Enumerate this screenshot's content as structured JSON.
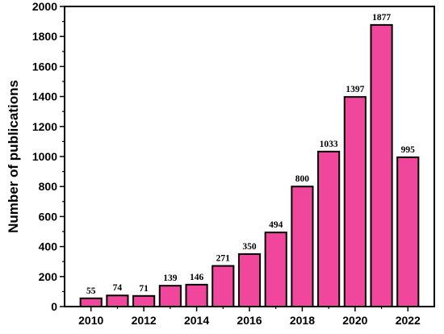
{
  "chart_data": {
    "type": "bar",
    "categories": [
      "2010",
      "2011",
      "2012",
      "2013",
      "2014",
      "2015",
      "2016",
      "2017",
      "2018",
      "2019",
      "2020",
      "2021",
      "2022"
    ],
    "values": [
      55,
      74,
      71,
      139,
      146,
      271,
      350,
      494,
      800,
      1033,
      1397,
      1877,
      995
    ],
    "data_labels": [
      "55",
      "74",
      "71",
      "139",
      "146",
      "271",
      "350",
      "494",
      "800",
      "1033",
      "1397",
      "1877",
      "995"
    ],
    "xticks": [
      "2010",
      "2012",
      "2014",
      "2016",
      "2018",
      "2020",
      "2022"
    ],
    "yticks": [
      "0",
      "200",
      "400",
      "600",
      "800",
      "1000",
      "1200",
      "1400",
      "1600",
      "1800",
      "2000"
    ],
    "xlabel": "",
    "ylabel": "Number of publications",
    "ylim": [
      0,
      2000
    ],
    "grid": false,
    "bar_color": "#f0479c",
    "bar_edge_color": "#000000"
  }
}
